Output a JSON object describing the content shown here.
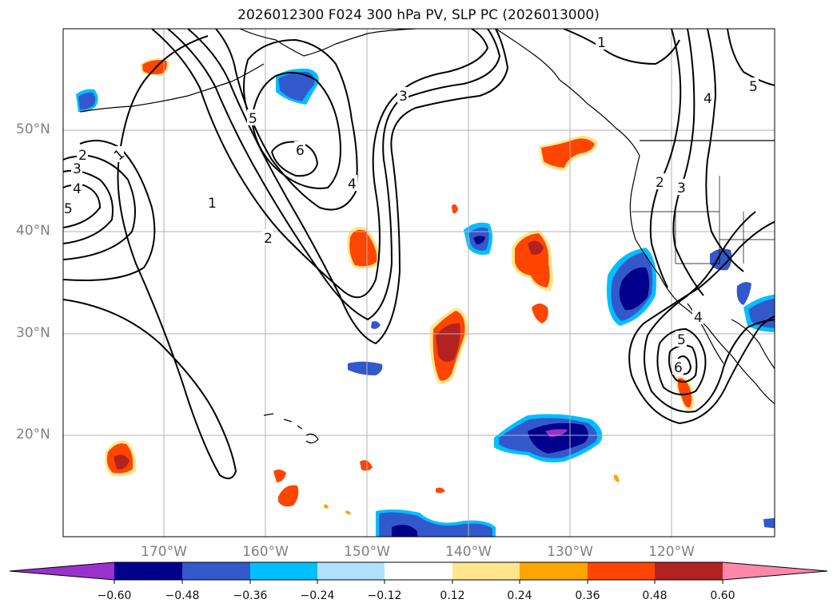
{
  "title": "2026012300 F024 300 hPa PV, SLP PC (2026013000)",
  "map": {
    "lat_labels": [
      "50°N",
      "40°N",
      "30°N",
      "20°N"
    ],
    "lon_labels": [
      "170°W",
      "160°W",
      "150°W",
      "140°W",
      "130°W",
      "120°W"
    ],
    "slp_contour_labels": [
      "1",
      "2",
      "3",
      "4",
      "5",
      "6",
      "1",
      "2",
      "3",
      "4",
      "5",
      "1",
      "2",
      "3",
      "4",
      "5",
      "6",
      "5"
    ]
  },
  "colorbar": {
    "tick_labels": [
      "−0.60",
      "−0.48",
      "−0.36",
      "−0.24",
      "−0.12",
      "0.12",
      "0.24",
      "0.36",
      "0.48",
      "0.60"
    ],
    "colors": [
      "#9932cc",
      "#00008b",
      "#3358cc",
      "#00bfff",
      "#b0e2ff",
      "#ffffff",
      "#ffe68c",
      "#ffa500",
      "#ff4500",
      "#b22222",
      "#ff88aa"
    ]
  },
  "colors": {
    "neg_strong": "#00008b",
    "neg_medium": "#3358cc",
    "neg_light": "#00bfff",
    "pos_orange": "#ff4500",
    "pos_red": "#b22222",
    "pos_yellow": "#ffe68c",
    "pos_purple": "#9932cc"
  }
}
